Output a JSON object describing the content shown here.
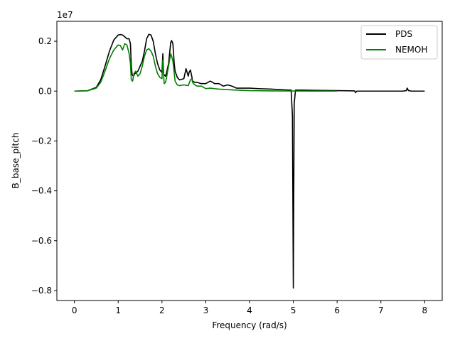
{
  "chart_data": {
    "type": "line",
    "xlabel": "Frequency (rad/s)",
    "ylabel": "B_base_pitch",
    "scale_label": "1e7",
    "xlim": [
      -0.4,
      8.4
    ],
    "ylim": [
      -0.84,
      0.28
    ],
    "xticks": [
      0,
      1,
      2,
      3,
      4,
      5,
      6,
      7,
      8
    ],
    "xtick_labels": [
      "0",
      "1",
      "2",
      "3",
      "4",
      "5",
      "6",
      "7",
      "8"
    ],
    "yticks": [
      -0.8,
      -0.6,
      -0.4,
      -0.2,
      0.0,
      0.2
    ],
    "ytick_labels": [
      "−0.8",
      "−0.6",
      "−0.4",
      "−0.2",
      "0.0",
      "0.2"
    ],
    "grid": false,
    "legend_position": "top-right",
    "series": [
      {
        "name": "PDS",
        "color": "#000000",
        "x": [
          0,
          0.3,
          0.5,
          0.6,
          0.7,
          0.8,
          0.9,
          1.0,
          1.05,
          1.1,
          1.15,
          1.2,
          1.25,
          1.28,
          1.3,
          1.32,
          1.35,
          1.38,
          1.42,
          1.45,
          1.5,
          1.55,
          1.6,
          1.65,
          1.7,
          1.75,
          1.8,
          1.85,
          1.9,
          1.95,
          2.0,
          2.02,
          2.04,
          2.06,
          2.08,
          2.1,
          2.15,
          2.2,
          2.22,
          2.25,
          2.28,
          2.3,
          2.35,
          2.4,
          2.5,
          2.55,
          2.6,
          2.62,
          2.65,
          2.68,
          2.7,
          2.75,
          2.8,
          2.9,
          3.0,
          3.1,
          3.15,
          3.2,
          3.3,
          3.4,
          3.5,
          3.6,
          3.7,
          3.8,
          4.0,
          4.2,
          4.5,
          4.8,
          4.9,
          4.95,
          4.98,
          5.0,
          5.02,
          5.05,
          5.2,
          5.5,
          6.0,
          6.4,
          6.42,
          6.45,
          7.0,
          7.5,
          7.58,
          7.6,
          7.63,
          7.7,
          8.0
        ],
        "y": [
          0.0,
          0.0015,
          0.015,
          0.045,
          0.1,
          0.16,
          0.205,
          0.225,
          0.227,
          0.225,
          0.218,
          0.21,
          0.21,
          0.19,
          0.1,
          0.065,
          0.06,
          0.07,
          0.075,
          0.08,
          0.1,
          0.12,
          0.16,
          0.21,
          0.228,
          0.225,
          0.2,
          0.15,
          0.11,
          0.085,
          0.075,
          0.15,
          0.06,
          0.065,
          0.06,
          0.07,
          0.11,
          0.195,
          0.203,
          0.19,
          0.11,
          0.08,
          0.055,
          0.045,
          0.05,
          0.09,
          0.06,
          0.075,
          0.085,
          0.06,
          0.04,
          0.035,
          0.035,
          0.03,
          0.03,
          0.04,
          0.036,
          0.03,
          0.03,
          0.02,
          0.025,
          0.02,
          0.012,
          0.012,
          0.012,
          0.01,
          0.008,
          0.005,
          0.004,
          0.004,
          -0.1,
          -0.79,
          -0.05,
          0.004,
          0.004,
          0.003,
          0.002,
          0.001,
          -0.006,
          0.0,
          0.0,
          0.0,
          0.002,
          0.012,
          0.002,
          0.0,
          0.0
        ]
      },
      {
        "name": "NEMOH",
        "color": "#008000",
        "x": [
          0,
          0.3,
          0.5,
          0.6,
          0.7,
          0.8,
          0.9,
          0.95,
          1.0,
          1.05,
          1.1,
          1.15,
          1.2,
          1.25,
          1.28,
          1.3,
          1.33,
          1.36,
          1.4,
          1.45,
          1.5,
          1.55,
          1.6,
          1.65,
          1.7,
          1.75,
          1.8,
          1.85,
          1.9,
          1.95,
          2.0,
          2.02,
          2.05,
          2.08,
          2.1,
          2.15,
          2.2,
          2.22,
          2.25,
          2.3,
          2.35,
          2.4,
          2.5,
          2.6,
          2.65,
          2.68,
          2.7,
          2.75,
          2.8,
          2.9,
          3.0,
          3.1,
          3.2,
          3.3,
          3.5,
          3.7,
          4.0,
          4.5,
          5.0,
          5.5,
          6.0
        ],
        "y": [
          0.0,
          0.0012,
          0.012,
          0.035,
          0.08,
          0.13,
          0.165,
          0.175,
          0.185,
          0.183,
          0.165,
          0.19,
          0.185,
          0.15,
          0.11,
          0.045,
          0.04,
          0.07,
          0.08,
          0.06,
          0.07,
          0.1,
          0.14,
          0.165,
          0.17,
          0.16,
          0.14,
          0.1,
          0.07,
          0.055,
          0.05,
          0.125,
          0.03,
          0.035,
          0.05,
          0.1,
          0.15,
          0.14,
          0.12,
          0.04,
          0.025,
          0.022,
          0.025,
          0.022,
          0.045,
          0.05,
          0.035,
          0.025,
          0.02,
          0.02,
          0.01,
          0.012,
          0.01,
          0.008,
          0.006,
          0.004,
          0.002,
          0.001,
          0.0005,
          0.0002,
          0.0
        ]
      }
    ]
  }
}
